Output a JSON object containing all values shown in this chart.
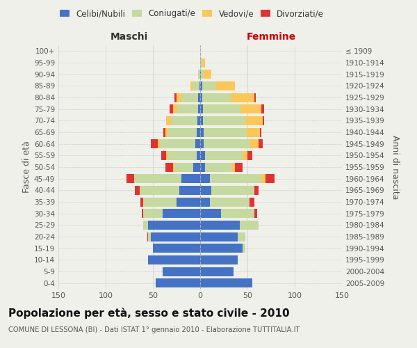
{
  "age_groups": [
    "0-4",
    "5-9",
    "10-14",
    "15-19",
    "20-24",
    "25-29",
    "30-34",
    "35-39",
    "40-44",
    "45-49",
    "50-54",
    "55-59",
    "60-64",
    "65-69",
    "70-74",
    "75-79",
    "80-84",
    "85-89",
    "90-94",
    "95-99",
    "100+"
  ],
  "birth_years": [
    "2005-2009",
    "2000-2004",
    "1995-1999",
    "1990-1994",
    "1985-1989",
    "1980-1984",
    "1975-1979",
    "1970-1974",
    "1965-1969",
    "1960-1964",
    "1955-1959",
    "1950-1954",
    "1945-1949",
    "1940-1944",
    "1935-1939",
    "1930-1934",
    "1925-1929",
    "1920-1924",
    "1915-1919",
    "1910-1914",
    "≤ 1909"
  ],
  "male_celibe": [
    47,
    40,
    55,
    50,
    52,
    55,
    40,
    25,
    22,
    20,
    7,
    4,
    5,
    4,
    3,
    2,
    2,
    1,
    0,
    0,
    0
  ],
  "male_coniugato": [
    0,
    0,
    0,
    0,
    3,
    5,
    20,
    35,
    42,
    50,
    20,
    30,
    38,
    30,
    28,
    22,
    18,
    7,
    2,
    0,
    0
  ],
  "male_vedovo": [
    0,
    0,
    0,
    0,
    0,
    0,
    0,
    0,
    0,
    0,
    2,
    2,
    2,
    3,
    5,
    5,
    5,
    2,
    0,
    0,
    0
  ],
  "male_divorziato": [
    0,
    0,
    0,
    0,
    1,
    0,
    2,
    3,
    5,
    8,
    8,
    5,
    7,
    2,
    0,
    3,
    2,
    0,
    0,
    0,
    0
  ],
  "female_celibe": [
    55,
    35,
    40,
    45,
    40,
    42,
    22,
    10,
    12,
    10,
    5,
    5,
    4,
    4,
    3,
    3,
    2,
    2,
    1,
    0,
    0
  ],
  "female_coniugato": [
    0,
    0,
    0,
    3,
    8,
    20,
    35,
    42,
    45,
    55,
    28,
    40,
    48,
    45,
    45,
    40,
    30,
    15,
    3,
    2,
    0
  ],
  "female_vedovo": [
    0,
    0,
    0,
    0,
    0,
    0,
    0,
    0,
    0,
    4,
    4,
    5,
    10,
    14,
    18,
    22,
    25,
    20,
    8,
    3,
    0
  ],
  "female_divorziato": [
    0,
    0,
    0,
    0,
    0,
    0,
    3,
    5,
    5,
    10,
    8,
    5,
    4,
    2,
    2,
    3,
    2,
    0,
    0,
    0,
    0
  ],
  "color_celibe": "#4472c4",
  "color_coniugato": "#c5d9a0",
  "color_vedovo": "#fac858",
  "color_divorziato": "#e03232",
  "title": "Popolazione per età, sesso e stato civile - 2010",
  "subtitle": "COMUNE DI LESSONA (BI) - Dati ISTAT 1° gennaio 2010 - Elaborazione TUTTITALIA.IT",
  "xlabel_left": "Maschi",
  "xlabel_right": "Femmine",
  "ylabel_left": "Fasce di età",
  "ylabel_right": "Anni di nascita",
  "xlim": 150,
  "bg_color": "#f0f0eb",
  "grid_color": "#cccccc"
}
